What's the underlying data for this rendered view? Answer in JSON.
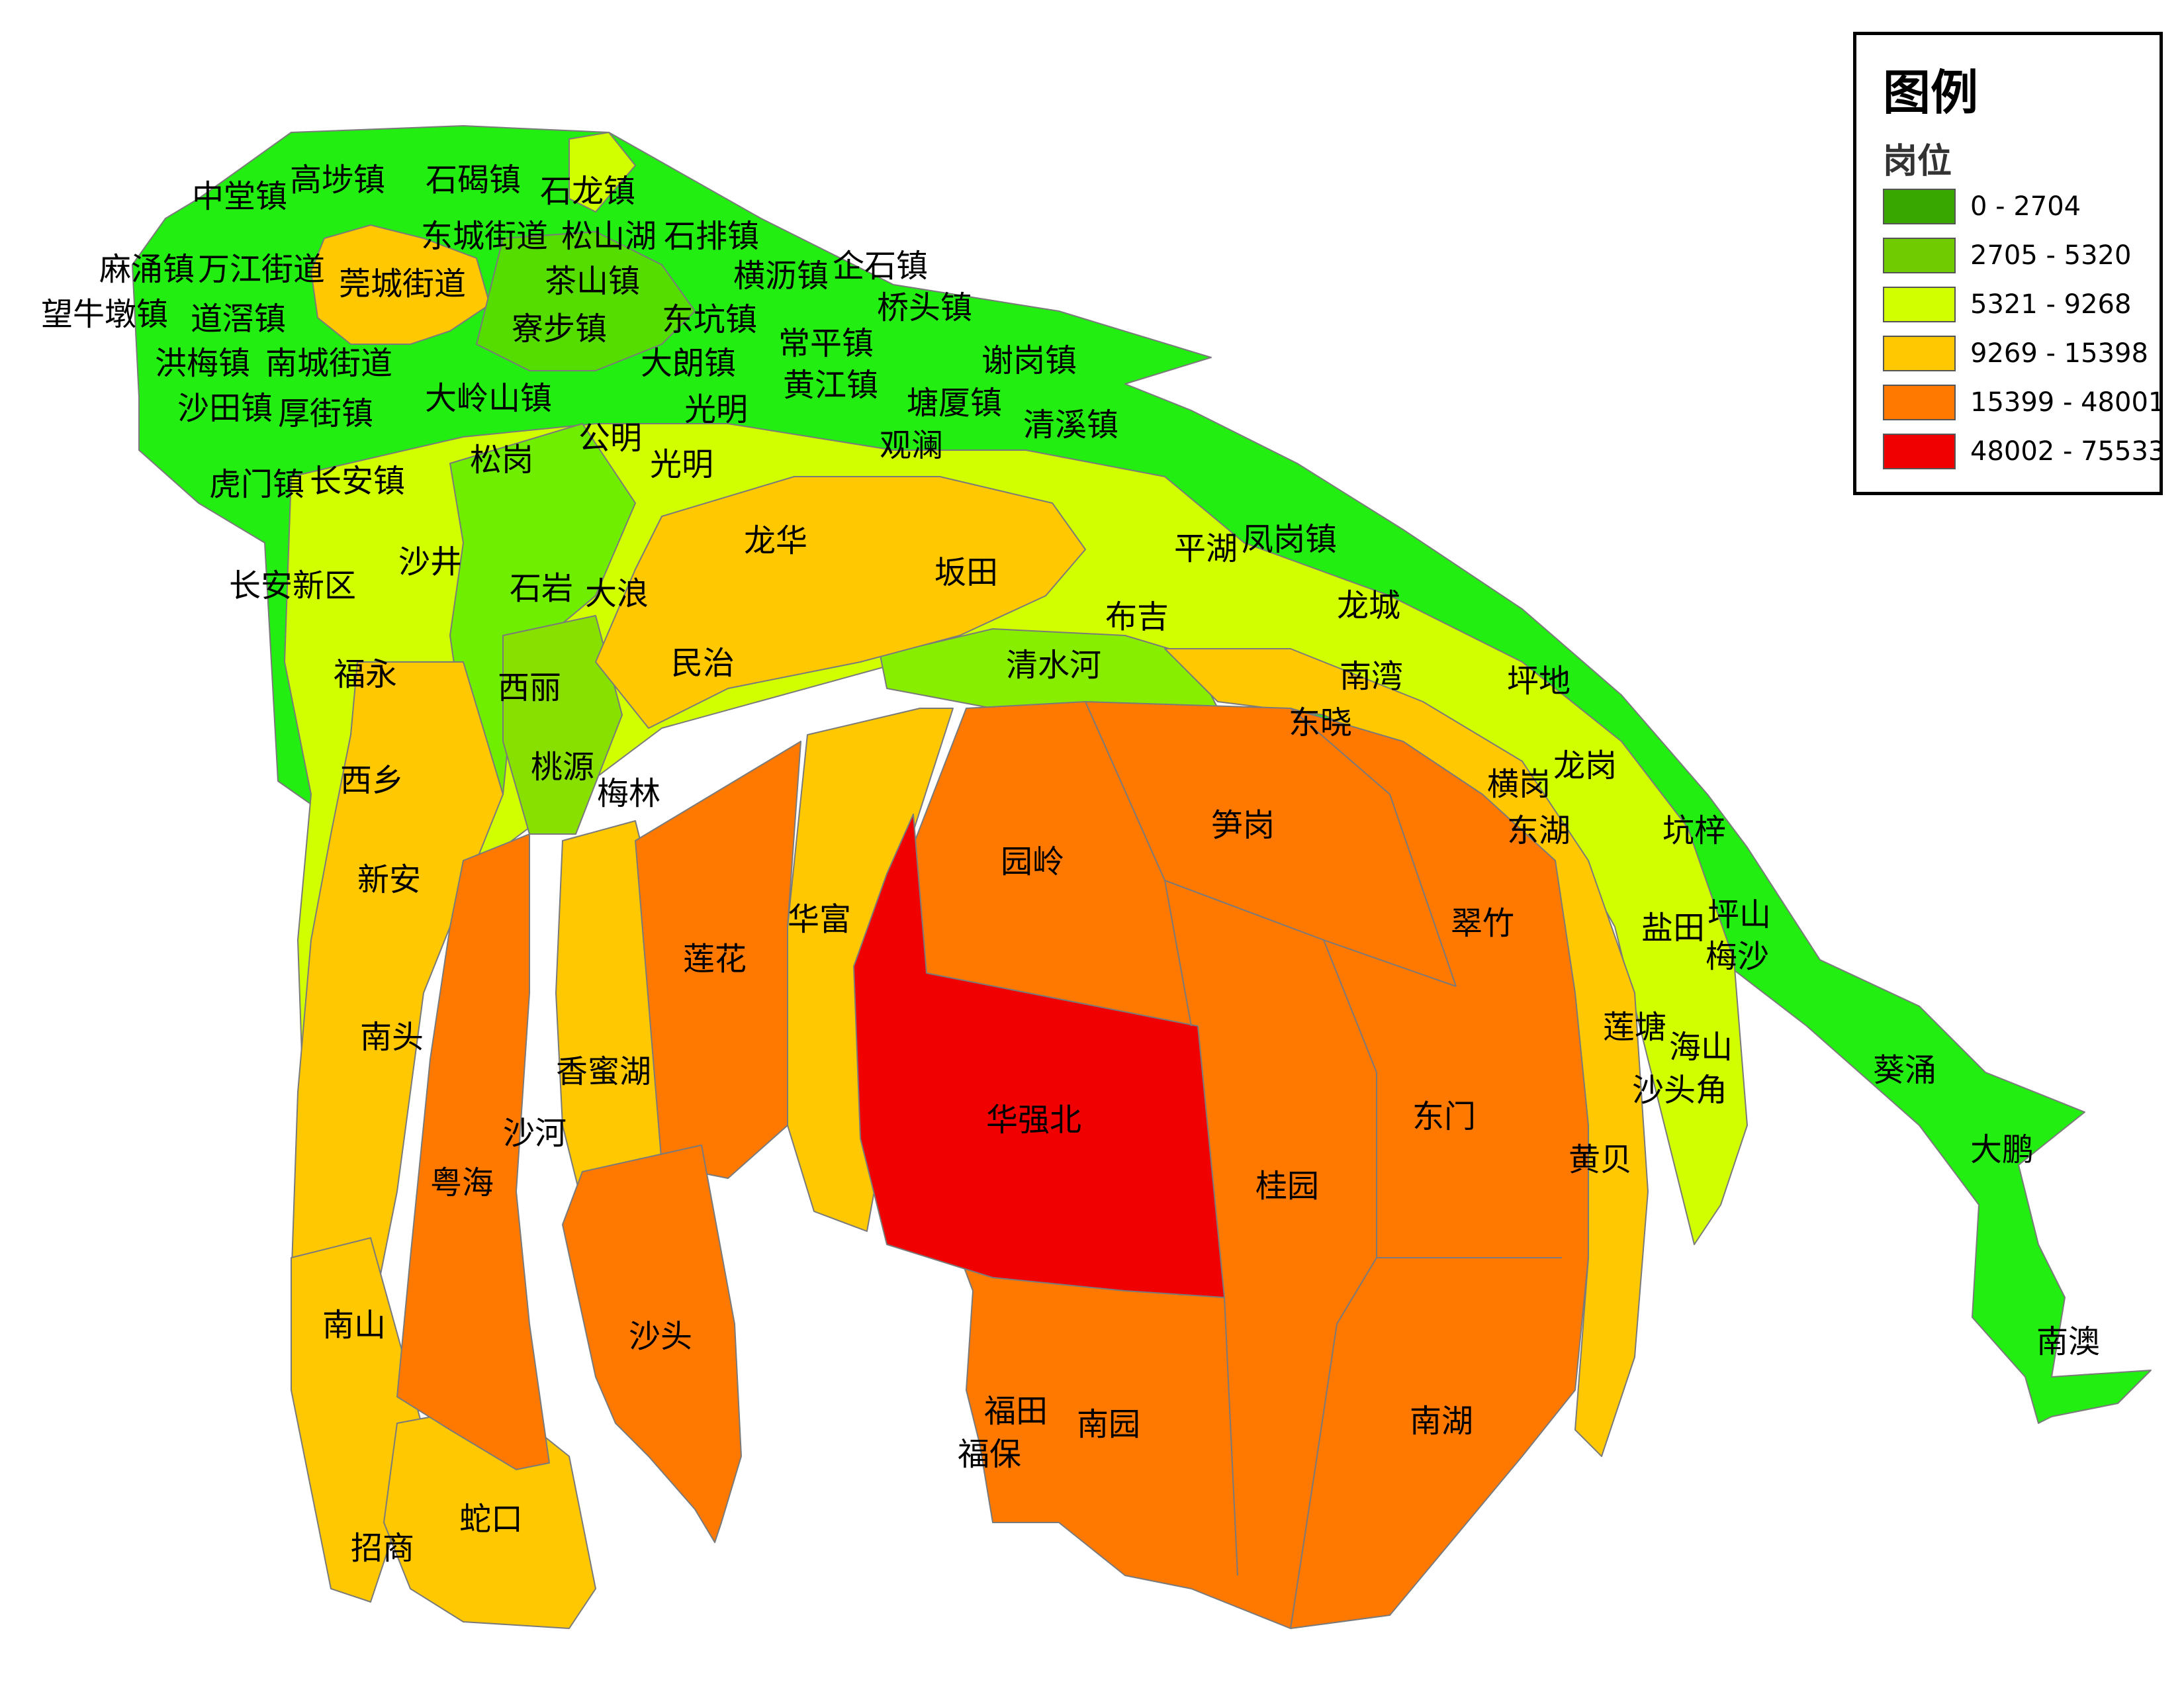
{
  "legend": {
    "title": "图例",
    "subtitle": "岗位",
    "classes": [
      {
        "range": "0 - 2704",
        "color": "#38a800"
      },
      {
        "range": "2705 - 5320",
        "color": "#70cc00"
      },
      {
        "range": "5321 - 9268",
        "color": "#d1ff00"
      },
      {
        "range": "9269 - 15398",
        "color": "#ffc800"
      },
      {
        "range": "15399 - 48001",
        "color": "#ff7800"
      },
      {
        "range": "48002 - 75533",
        "color": "#f00000"
      }
    ]
  },
  "labels": [
    "中堂镇",
    "高埗镇",
    "石碣镇",
    "石龙镇",
    "东城街道",
    "松山湖",
    "石排镇",
    "麻涌镇",
    "万江街道",
    "莞城街道",
    "茶山镇",
    "横沥镇",
    "企石镇",
    "望牛墩镇",
    "道滘镇",
    "寮步镇",
    "东坑镇",
    "桥头镇",
    "常平镇",
    "洪梅镇",
    "南城街道",
    "大朗镇",
    "谢岗镇",
    "沙田镇",
    "厚街镇",
    "大岭山镇",
    "光明",
    "黄江镇",
    "塘厦镇",
    "清溪镇",
    "松岗",
    "公明",
    "光明",
    "观澜",
    "虎门镇",
    "长安镇",
    "龙华",
    "坂田",
    "平湖",
    "凤岗镇",
    "沙井",
    "长安新区",
    "石岩",
    "大浪",
    "布吉",
    "龙城",
    "民治",
    "清水河",
    "南湾",
    "坪地",
    "福永",
    "西丽",
    "东晓",
    "龙岗",
    "桃源",
    "横岗",
    "西乡",
    "梅林",
    "笋岗",
    "东湖",
    "坑梓",
    "园岭",
    "新安",
    "华富",
    "坪山",
    "盐田",
    "梅沙",
    "莲花",
    "翠竹",
    "莲塘",
    "南头",
    "海山",
    "香蜜湖",
    "葵涌",
    "沙头角",
    "华强北",
    "东门",
    "沙河",
    "黄贝",
    "大鹏",
    "粤海",
    "桂园",
    "南山",
    "沙头",
    "南澳",
    "福田",
    "南园",
    "南湖",
    "福保",
    "蛇口",
    "招商"
  ]
}
